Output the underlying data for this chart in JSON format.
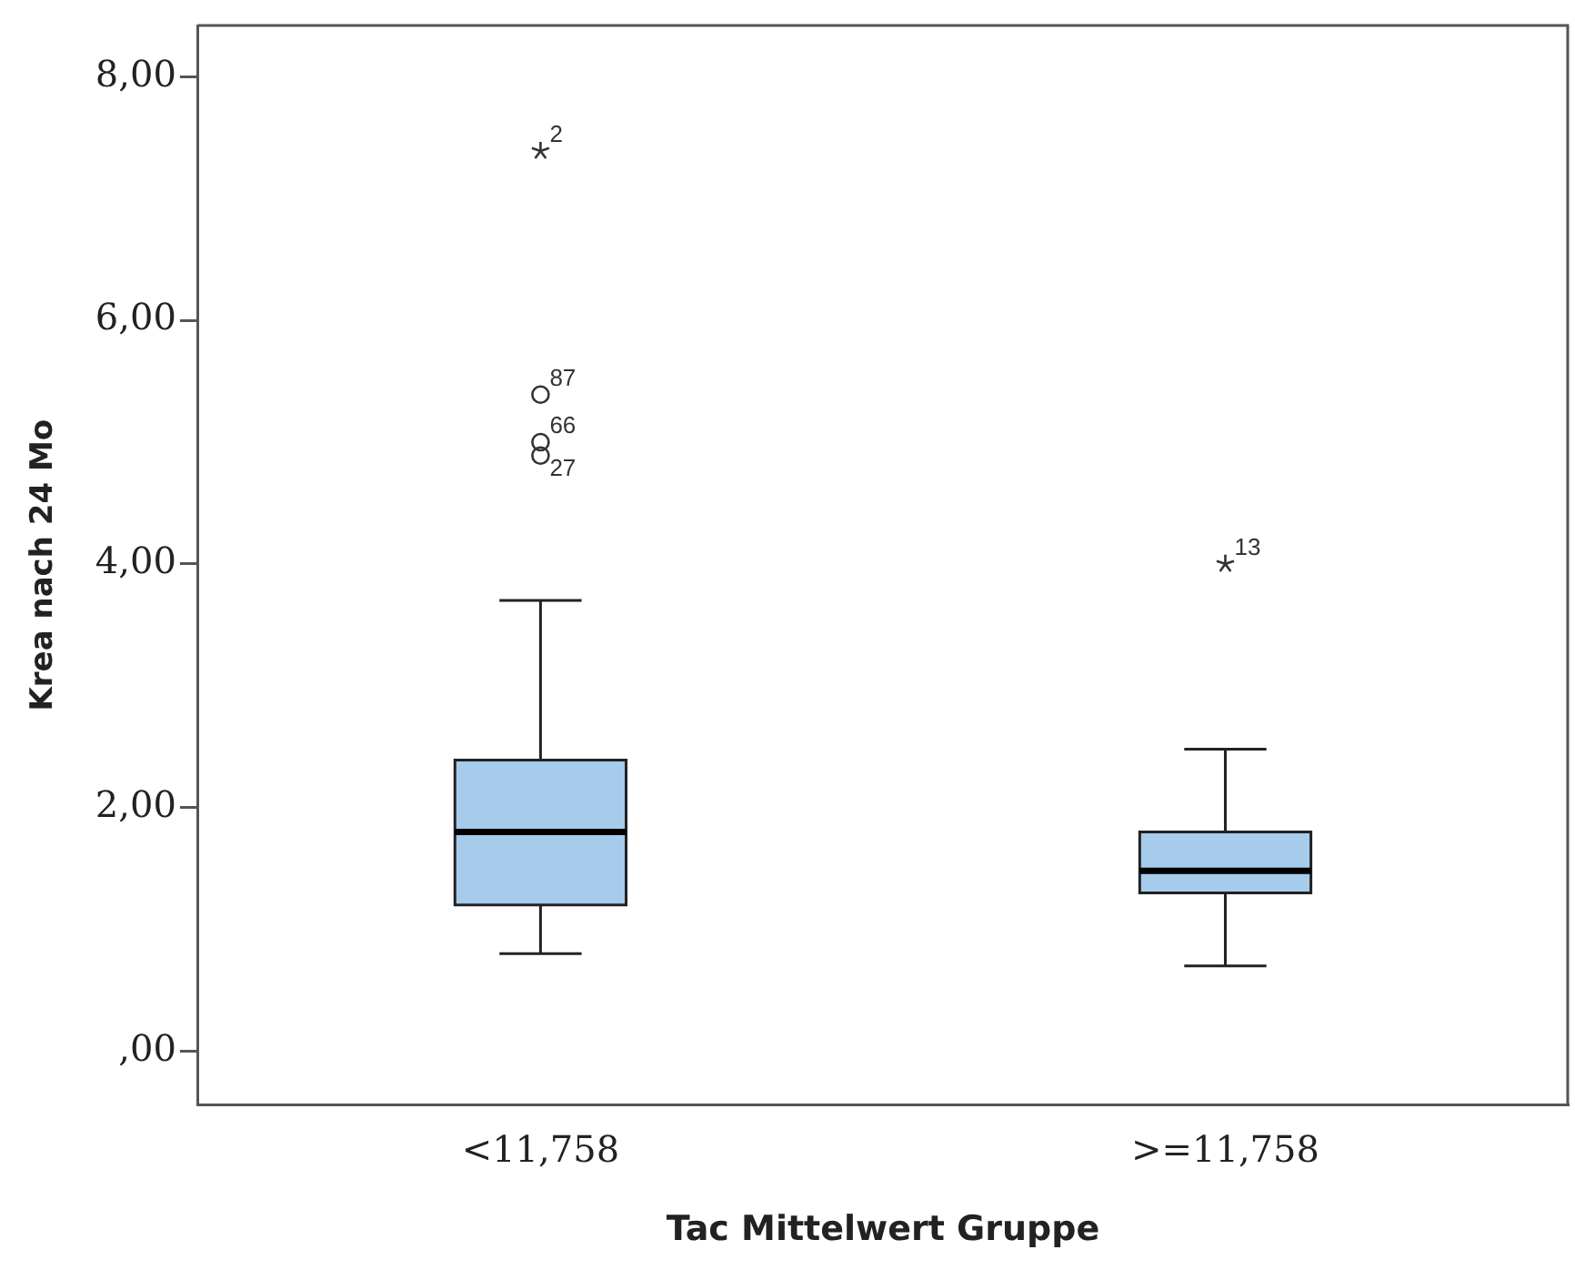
{
  "chart_data": {
    "type": "box",
    "xlabel": "Tac Mittelwert Gruppe",
    "ylabel": "Krea nach 24 Mo",
    "categories": [
      "<11,758",
      ">=11,758"
    ],
    "color": "#a6cbeb",
    "boxes": [
      {
        "low": 0.8,
        "q1": 1.2,
        "median": 1.8,
        "q3": 2.39,
        "high": 3.7,
        "outliers": [
          7.39,
          5.39,
          5.0,
          4.89
        ]
      },
      {
        "low": 0.7,
        "q1": 1.3,
        "median": 1.48,
        "q3": 1.8,
        "high": 2.48,
        "outliers": [
          4.0
        ]
      }
    ],
    "ylim": [
      -0.44,
      8.42
    ],
    "yticks": [
      {
        "value": 0,
        "label": ",00"
      },
      {
        "value": 2,
        "label": "2,00"
      },
      {
        "value": 4,
        "label": "4,00"
      },
      {
        "value": 6,
        "label": "6,00"
      },
      {
        "value": 8,
        "label": "8,00"
      }
    ],
    "annotations": [
      "2",
      "87",
      "66",
      "27",
      "13"
    ],
    "grid": false,
    "legend": false
  }
}
